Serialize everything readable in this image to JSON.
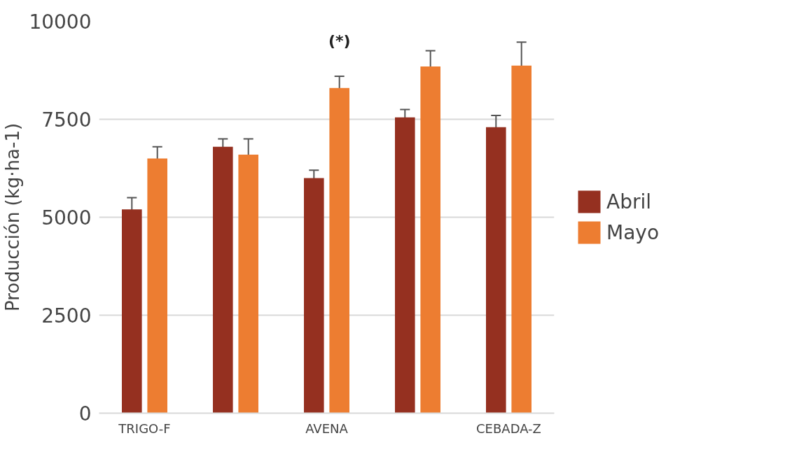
{
  "chart_data": {
    "type": "bar",
    "ylabel": "Producción (kg·ha-1)",
    "categories": [
      "TRIGO-F",
      null,
      "AVENA",
      null,
      "CEBADA-Z"
    ],
    "series": [
      {
        "name": "Abril",
        "color": "#953020",
        "values": [
          5200,
          6800,
          6000,
          7550,
          7300
        ],
        "errors": [
          300,
          200,
          200,
          200,
          300
        ]
      },
      {
        "name": "Mayo",
        "color": "#ed7d31",
        "values": [
          6500,
          6600,
          8300,
          8850,
          8870
        ],
        "errors": [
          300,
          400,
          300,
          400,
          600
        ]
      }
    ],
    "ylim": [
      0,
      10000
    ],
    "yticks": [
      0,
      2500,
      5000,
      7500,
      10000
    ],
    "grid": "y",
    "legend": "right",
    "annotations": [
      "(*)"
    ]
  }
}
